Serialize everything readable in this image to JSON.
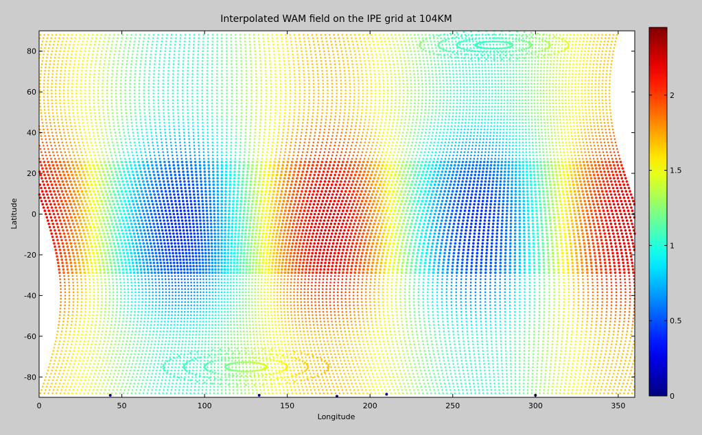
{
  "chart_data": {
    "type": "scatter",
    "title": "Interpolated WAM field on the IPE grid at 104KM",
    "xlabel": "Longitude",
    "ylabel": "Latitude",
    "xlim": [
      0,
      360
    ],
    "ylim": [
      -90,
      90
    ],
    "xticks": [
      0,
      50,
      100,
      150,
      200,
      250,
      300,
      350
    ],
    "yticks": [
      -80,
      -60,
      -40,
      -20,
      0,
      20,
      40,
      60,
      80
    ],
    "grid": false,
    "colorbar": {
      "colormap": "jet",
      "clim": [
        0,
        2.45
      ],
      "ticks": [
        0,
        0.5,
        1,
        1.5,
        2
      ],
      "tick_labels": [
        "0",
        "0.5",
        "1",
        "1.5",
        "2"
      ]
    },
    "field": {
      "description_of_value": "wave-like pattern with two wavenumber-2 cycles in longitude",
      "high_centers_lon": [
        0,
        200,
        355
      ],
      "low_centers_lon": [
        100,
        275
      ],
      "north_pole_ring_lon": 275,
      "south_pole_ring_lon": 125,
      "outlier_points": [
        {
          "lon": 43,
          "lat": -89,
          "value": 0
        },
        {
          "lon": 133,
          "lat": -89,
          "value": 0
        },
        {
          "lon": 180,
          "lat": -89.5,
          "value": 0
        },
        {
          "lon": 210,
          "lat": -88.5,
          "value": 0
        },
        {
          "lon": 300,
          "lat": -89,
          "value": 0
        }
      ]
    }
  }
}
